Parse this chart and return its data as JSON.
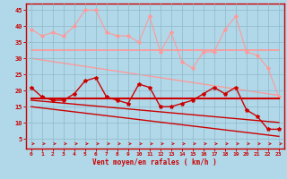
{
  "x": [
    0,
    1,
    2,
    3,
    4,
    5,
    6,
    7,
    8,
    9,
    10,
    11,
    12,
    13,
    14,
    15,
    16,
    17,
    18,
    19,
    20,
    21,
    22,
    23
  ],
  "bg_color": "#b0d8e8",
  "grid_color": "#90b8c8",
  "series": {
    "light_pink_jagged": {
      "color": "#ff9999",
      "lw": 0.8,
      "marker": "D",
      "ms": 1.8,
      "values": [
        39,
        37,
        38,
        37,
        40,
        45,
        45,
        38,
        37,
        37,
        35,
        43,
        32,
        38,
        29,
        27,
        32,
        32,
        39,
        43,
        32,
        31,
        27,
        18
      ]
    },
    "light_pink_line1": {
      "color": "#ff9999",
      "lw": 1.3,
      "values": [
        32.5,
        32.5,
        32.5,
        32.5,
        32.5,
        32.5,
        32.5,
        32.5,
        32.5,
        32.5,
        32.5,
        32.5,
        32.5,
        32.5,
        32.5,
        32.5,
        32.5,
        32.5,
        32.5,
        32.5,
        32.5,
        32.5,
        32.5,
        32.5
      ]
    },
    "light_pink_diagonal": {
      "color": "#ff9999",
      "lw": 1.0,
      "values": [
        30,
        29.5,
        29.0,
        28.5,
        28.0,
        27.5,
        27.0,
        26.5,
        26.0,
        25.5,
        25.0,
        24.5,
        24.0,
        23.5,
        23.0,
        22.5,
        22.0,
        21.5,
        21.0,
        20.5,
        20.0,
        19.5,
        19.0,
        18.5
      ]
    },
    "red_jagged": {
      "color": "#cc0000",
      "lw": 1.0,
      "marker": "*",
      "ms": 3.0,
      "values": [
        21,
        18,
        17,
        17,
        19,
        23,
        24,
        18,
        17,
        16,
        22,
        21,
        15,
        15,
        16,
        17,
        19,
        21,
        19,
        21,
        14,
        12,
        8,
        8
      ]
    },
    "red_line1": {
      "color": "#cc0000",
      "lw": 1.5,
      "values": [
        17.5,
        17.5,
        17.5,
        17.5,
        17.5,
        17.5,
        17.5,
        17.5,
        17.5,
        17.5,
        17.5,
        17.5,
        17.5,
        17.5,
        17.5,
        17.5,
        17.5,
        17.5,
        17.5,
        17.5,
        17.5,
        17.5,
        17.5,
        17.5
      ]
    },
    "red_diagonal1": {
      "color": "#cc0000",
      "lw": 1.0,
      "values": [
        17.0,
        16.7,
        16.4,
        16.1,
        15.8,
        15.5,
        15.2,
        14.9,
        14.6,
        14.3,
        14.0,
        13.7,
        13.4,
        13.1,
        12.8,
        12.5,
        12.2,
        11.9,
        11.6,
        11.3,
        11.0,
        10.7,
        10.4,
        10.1
      ]
    },
    "red_diagonal2": {
      "color": "#cc0000",
      "lw": 1.0,
      "values": [
        15.0,
        14.6,
        14.2,
        13.8,
        13.4,
        13.0,
        12.6,
        12.2,
        11.8,
        11.4,
        11.0,
        10.6,
        10.2,
        9.8,
        9.4,
        9.0,
        8.6,
        8.2,
        7.8,
        7.4,
        7.0,
        6.6,
        6.2,
        5.8
      ]
    }
  },
  "xlabel": "Vent moyen/en rafales ( km/h )",
  "ylim": [
    2,
    47
  ],
  "yticks": [
    5,
    10,
    15,
    20,
    25,
    30,
    35,
    40,
    45
  ],
  "xticks": [
    0,
    1,
    2,
    3,
    4,
    5,
    6,
    7,
    8,
    9,
    10,
    11,
    12,
    13,
    14,
    15,
    16,
    17,
    18,
    19,
    20,
    21,
    22,
    23
  ],
  "arrow_color": "#cc0000",
  "spine_color": "#cc0000",
  "tick_color": "#cc0000",
  "label_color": "#cc0000"
}
